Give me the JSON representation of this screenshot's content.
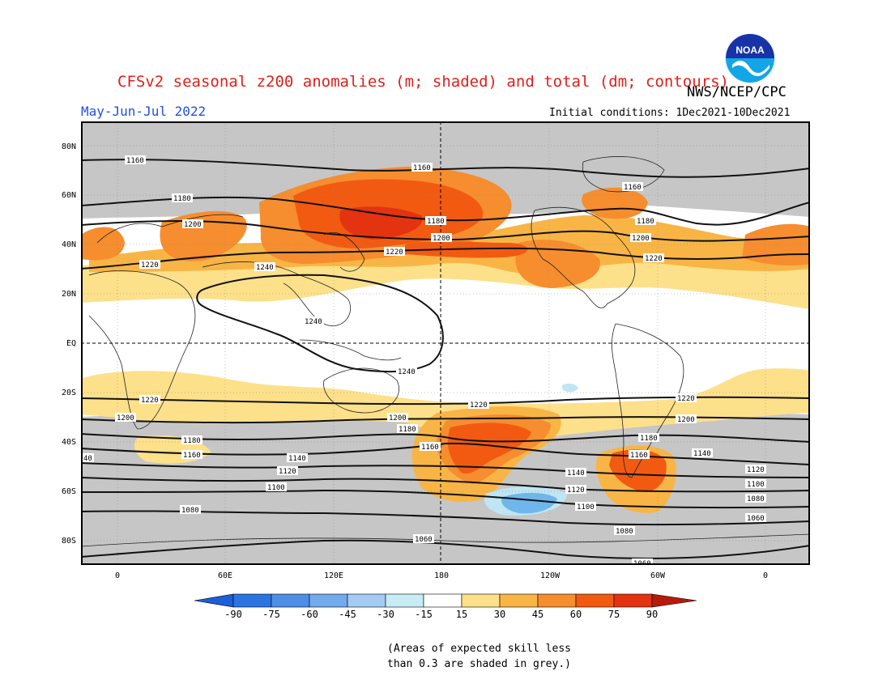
{
  "header": {
    "title": "CFSv2 seasonal z200 anomalies (m; shaded) and total (dm; contours)",
    "org": "NWS/NCEP/CPC",
    "period": "May-Jun-Jul 2022",
    "initial": "Initial conditions: 1Dec2021-10Dec2021",
    "logo_text": "NOAA"
  },
  "axes": {
    "lat_labels": [
      "80N",
      "60N",
      "40N",
      "20N",
      "EQ",
      "20S",
      "40S",
      "60S",
      "80S"
    ],
    "lon_labels": [
      "0",
      "60E",
      "120E",
      "180",
      "120W",
      "60W",
      "0"
    ]
  },
  "colors": {
    "grey": "#c6c6c6",
    "yellow": "#fde08a",
    "orange_light": "#f8b545",
    "orange": "#f68d2e",
    "red_orange": "#f25a12",
    "red": "#e33310",
    "light_blue": "#bfe6f2",
    "blue": "#6fb6ec"
  },
  "contours": {
    "labels": [
      "1160",
      "1180",
      "1200",
      "1220",
      "1240",
      "1240",
      "1240",
      "1160",
      "1180",
      "1200",
      "1220",
      "1160",
      "1180",
      "1200",
      "1220",
      "1220",
      "1220",
      "1200",
      "1200",
      "1180",
      "1160",
      "1140",
      "1120",
      "1100",
      "1080",
      "1060",
      "1180",
      "1160",
      "1140",
      "1120",
      "1100",
      "1080",
      "1060",
      "1220",
      "1200",
      "1180",
      "1160",
      "1140",
      "1120",
      "1100",
      "1080",
      "1060",
      "40"
    ]
  },
  "colorbar": {
    "labels": [
      "-90",
      "-75",
      "-60",
      "-45",
      "-30",
      "-15",
      "15",
      "30",
      "45",
      "60",
      "75",
      "90"
    ],
    "colors": [
      "#1a5ed8",
      "#2a75e0",
      "#4d8fe6",
      "#72aaec",
      "#a4ccf2",
      "#c8ecf4",
      "#ffffff",
      "#fde08a",
      "#f8b545",
      "#f68d2e",
      "#f25a12",
      "#e33310",
      "#b81a0a"
    ]
  },
  "note": {
    "line1": "(Areas of expected skill less",
    "line2": "than 0.3 are shaded in grey.)"
  }
}
